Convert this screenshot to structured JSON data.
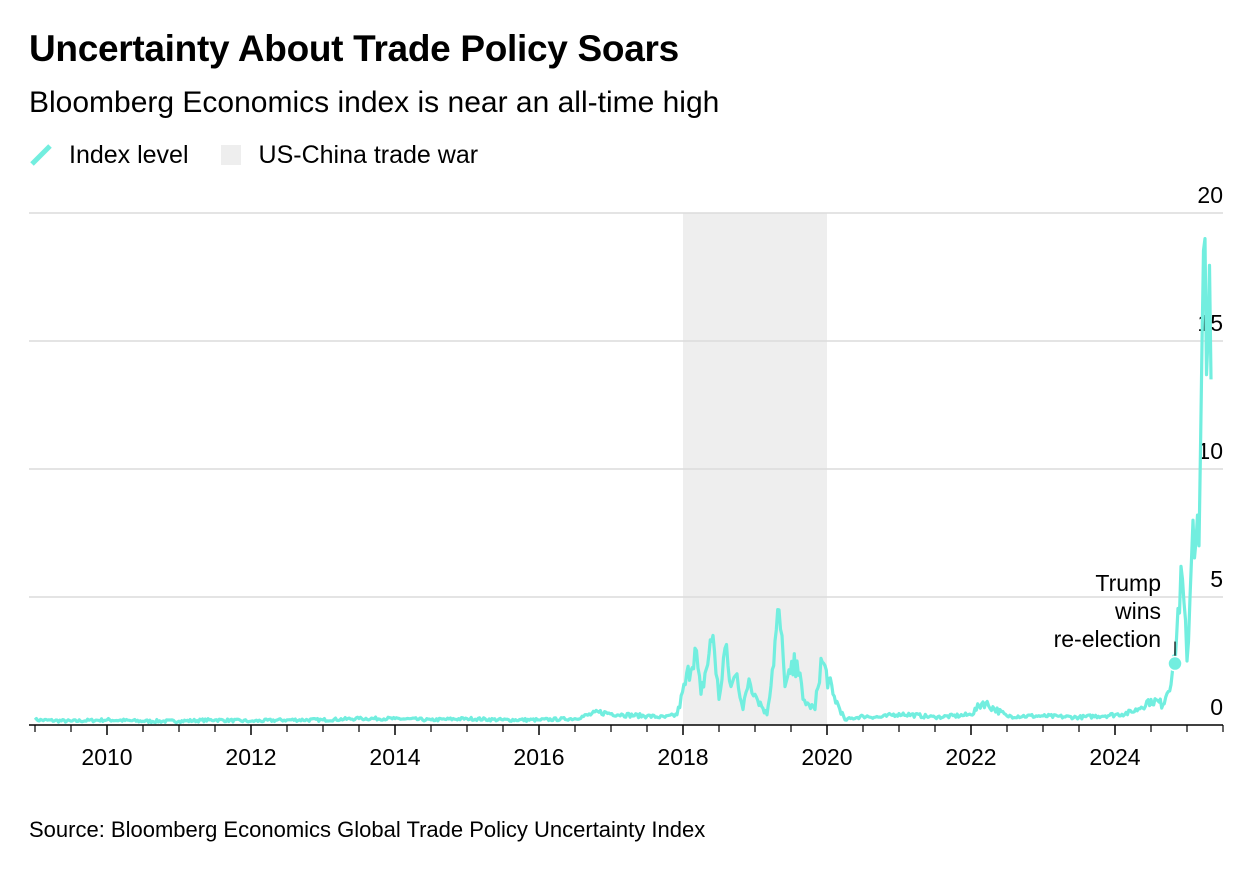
{
  "title": "Uncertainty About Trade Policy Soars",
  "subtitle": "Bloomberg Economics index is near an all-time high",
  "source": "Source: Bloomberg Economics Global Trade Policy Uncertainty Index",
  "colors": {
    "series": "#72eedf",
    "shade": "#eeeeee",
    "grid": "#dcdcdc",
    "axis": "#000000"
  },
  "chart_data": {
    "type": "line",
    "title": "Uncertainty About Trade Policy Soars",
    "subtitle": "Bloomberg Economics index is near an all-time high",
    "xlabel": "",
    "ylabel": "",
    "ylim": [
      0,
      20
    ],
    "xlim": [
      "2008-12",
      "2025-07"
    ],
    "yticks": [
      "0",
      "5",
      "10",
      "15",
      "20"
    ],
    "xticks": [
      "2010",
      "2012",
      "2014",
      "2016",
      "2018",
      "2020",
      "2022",
      "2024"
    ],
    "y_axis_position": "right",
    "grid": true,
    "legend_position": "top-left",
    "legend": [
      {
        "label": "Index level",
        "kind": "line"
      },
      {
        "label": "US-China trade war",
        "kind": "shade"
      }
    ],
    "shaded_periods": [
      {
        "name": "US-China trade war",
        "start": "2018-01",
        "end": "2020-01"
      }
    ],
    "annotations": [
      {
        "text_lines": [
          "Trump",
          "wins",
          "re-election"
        ],
        "date": "2024-11",
        "value": 2.4
      }
    ],
    "series": [
      {
        "name": "Index level",
        "points": [
          [
            "2009-01",
            0.2
          ],
          [
            "2009-07",
            0.15
          ],
          [
            "2010-01",
            0.2
          ],
          [
            "2010-07",
            0.15
          ],
          [
            "2011-01",
            0.15
          ],
          [
            "2011-07",
            0.2
          ],
          [
            "2012-01",
            0.15
          ],
          [
            "2012-07",
            0.2
          ],
          [
            "2013-01",
            0.2
          ],
          [
            "2013-07",
            0.25
          ],
          [
            "2014-01",
            0.25
          ],
          [
            "2014-07",
            0.2
          ],
          [
            "2015-01",
            0.25
          ],
          [
            "2015-07",
            0.2
          ],
          [
            "2016-01",
            0.2
          ],
          [
            "2016-07",
            0.25
          ],
          [
            "2016-11",
            0.5
          ],
          [
            "2017-03",
            0.4
          ],
          [
            "2017-07",
            0.35
          ],
          [
            "2017-10",
            0.3
          ],
          [
            "2017-12",
            0.4
          ],
          [
            "2018-03",
            3.0
          ],
          [
            "2018-04",
            1.2
          ],
          [
            "2018-06",
            3.5
          ],
          [
            "2018-07",
            1.0
          ],
          [
            "2018-08",
            3.0
          ],
          [
            "2018-09",
            1.5
          ],
          [
            "2018-10",
            2.0
          ],
          [
            "2018-11",
            0.6
          ],
          [
            "2018-12",
            1.8
          ],
          [
            "2019-01",
            1.2
          ],
          [
            "2019-03",
            0.4
          ],
          [
            "2019-05",
            4.5
          ],
          [
            "2019-06",
            1.5
          ],
          [
            "2019-08",
            2.5
          ],
          [
            "2019-09",
            1.0
          ],
          [
            "2019-10",
            0.8
          ],
          [
            "2019-11",
            0.6
          ],
          [
            "2019-12",
            2.6
          ],
          [
            "2020-02",
            1.2
          ],
          [
            "2020-04",
            0.2
          ],
          [
            "2020-07",
            0.35
          ],
          [
            "2020-10",
            0.3
          ],
          [
            "2021-01",
            0.45
          ],
          [
            "2021-07",
            0.3
          ],
          [
            "2022-01",
            0.4
          ],
          [
            "2022-03",
            0.9
          ],
          [
            "2022-07",
            0.35
          ],
          [
            "2023-01",
            0.35
          ],
          [
            "2023-07",
            0.3
          ],
          [
            "2024-01",
            0.4
          ],
          [
            "2024-04",
            0.5
          ],
          [
            "2024-07",
            1.0
          ],
          [
            "2024-09",
            0.8
          ],
          [
            "2024-11",
            2.4
          ],
          [
            "2024-12",
            6.2
          ],
          [
            "2025-01",
            2.5
          ],
          [
            "2025-02",
            8.0
          ],
          [
            "2025-03",
            7.0
          ],
          [
            "2025-04",
            19.0
          ],
          [
            "2025-05",
            13.5
          ]
        ]
      }
    ]
  }
}
